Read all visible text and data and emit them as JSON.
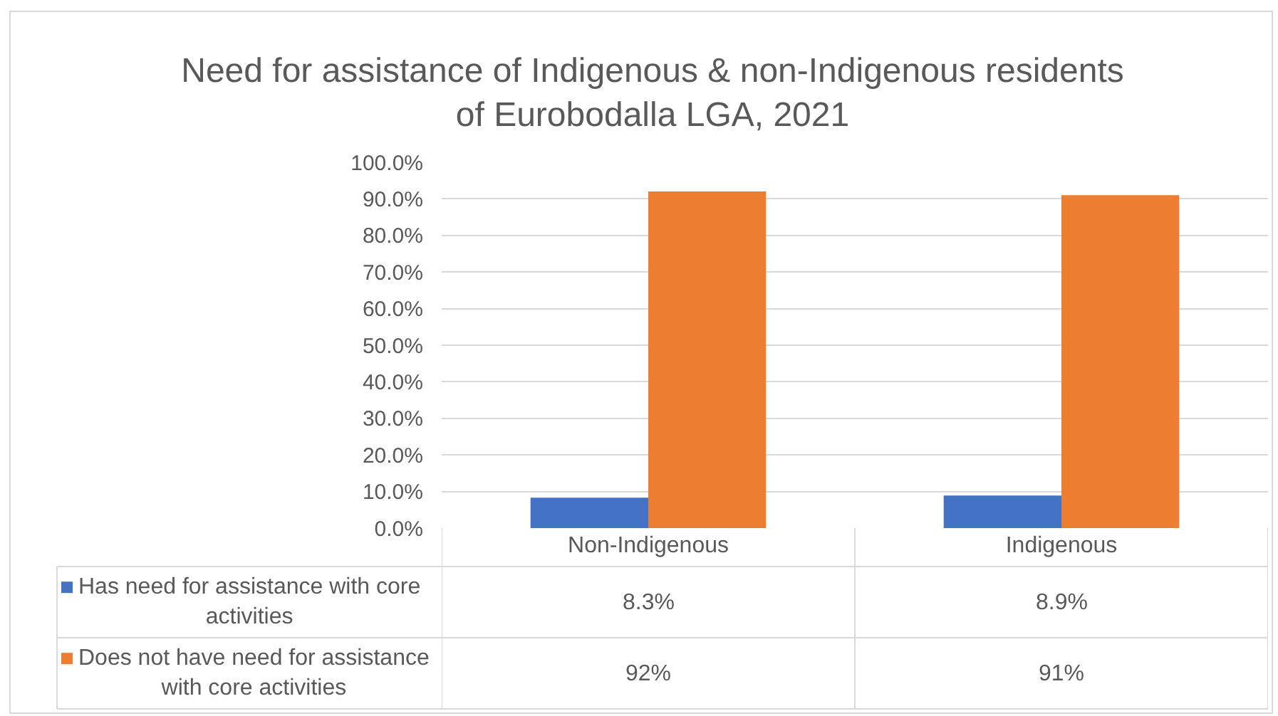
{
  "chart_data": {
    "type": "bar",
    "title": "Need for assistance of Indigenous & non-Indigenous residents of Eurobodalla LGA, 2021",
    "categories": [
      "Non-Indigenous",
      "Indigenous"
    ],
    "series": [
      {
        "name": "Has need for assistance with core activities",
        "color": "#4472c4",
        "values": [
          8.3,
          8.9
        ],
        "value_labels": [
          "8.3%",
          "8.9%"
        ]
      },
      {
        "name": "Does not have need for assistance with core activities",
        "color": "#ed7d31",
        "values": [
          92,
          91
        ],
        "value_labels": [
          "92%",
          "91%"
        ]
      }
    ],
    "ylim": [
      0,
      100
    ],
    "yticks": [
      {
        "value": 0,
        "label": "0.0%"
      },
      {
        "value": 10,
        "label": "10.0%"
      },
      {
        "value": 20,
        "label": "20.0%"
      },
      {
        "value": 30,
        "label": "30.0%"
      },
      {
        "value": 40,
        "label": "40.0%"
      },
      {
        "value": 50,
        "label": "50.0%"
      },
      {
        "value": 60,
        "label": "60.0%"
      },
      {
        "value": 70,
        "label": "70.0%"
      },
      {
        "value": 80,
        "label": "80.0%"
      },
      {
        "value": 90,
        "label": "90.0%"
      },
      {
        "value": 100,
        "label": "100.0%"
      }
    ],
    "grid": "y",
    "legend": "bottom"
  }
}
